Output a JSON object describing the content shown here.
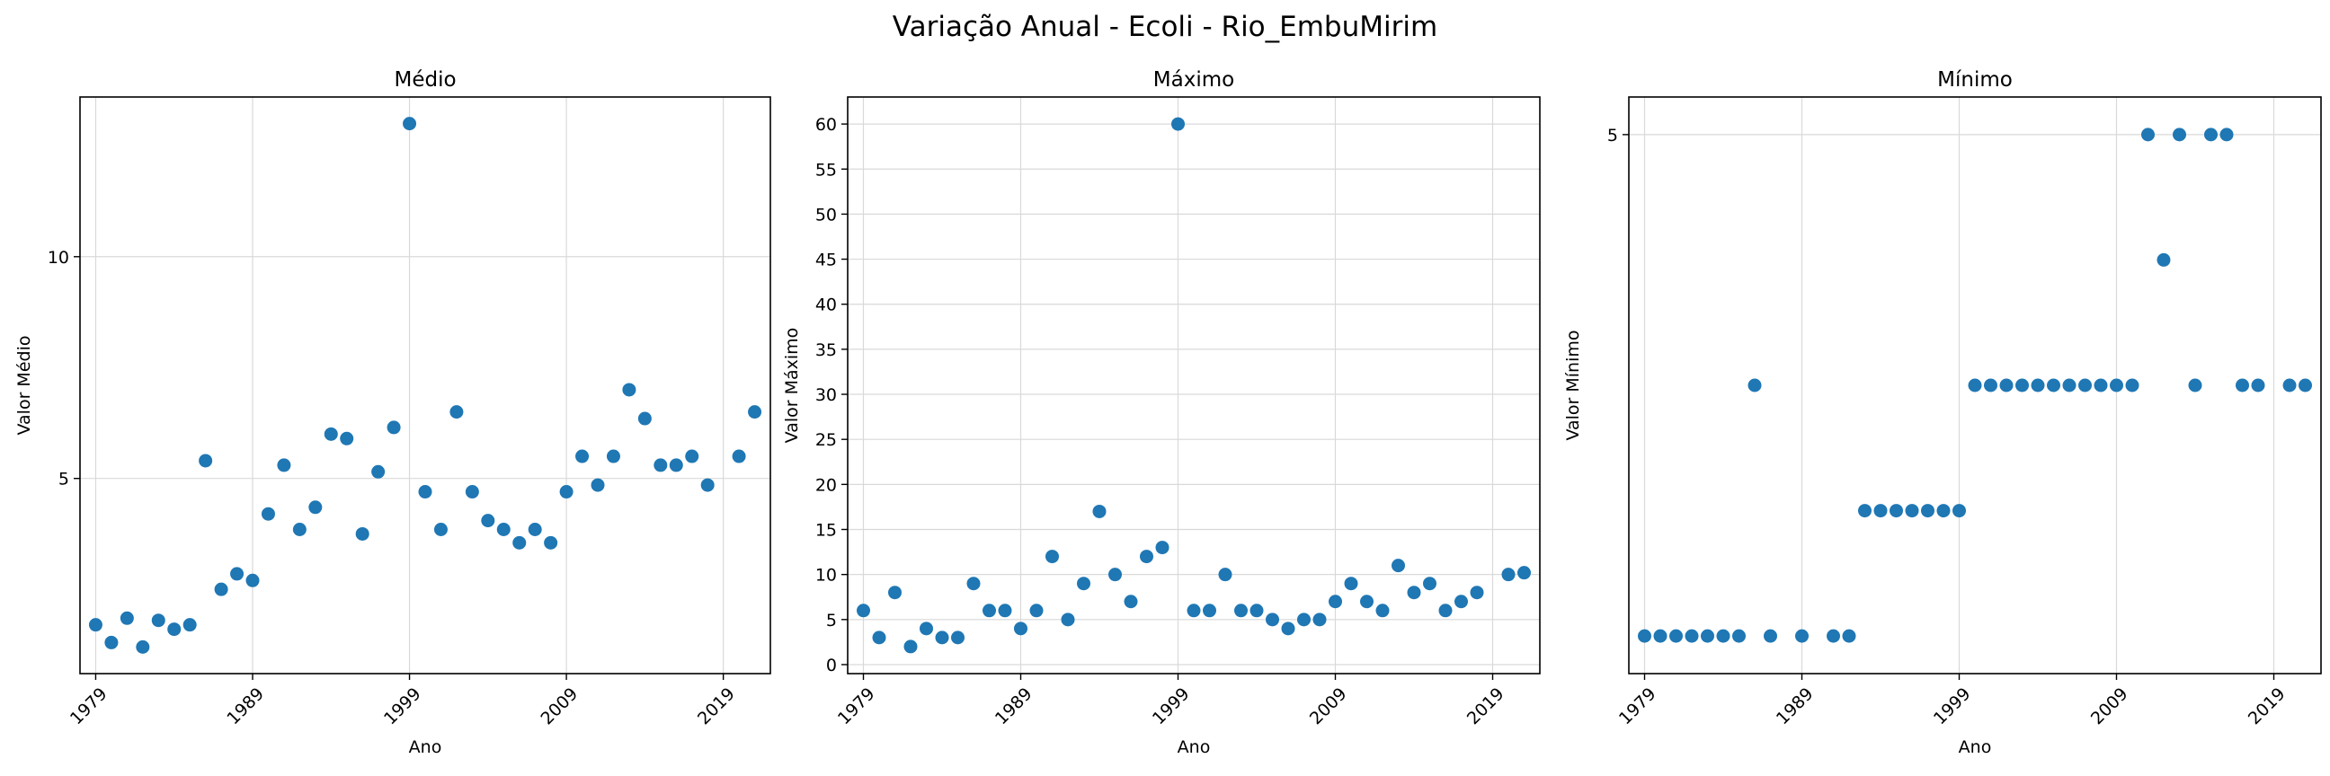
{
  "figure": {
    "title": "Variação Anual - Ecoli - Rio_EmbuMirim"
  },
  "colors": {
    "marker": "#1f77b4",
    "grid": "#d9d9d9",
    "axes": "#000000"
  },
  "chart_data": [
    {
      "type": "scatter",
      "title": "Médio",
      "xlabel": "Ano",
      "ylabel": "Valor Médio",
      "xlim": [
        1978,
        2022
      ],
      "ylim": [
        0.6,
        13.6
      ],
      "x_ticks": [
        1979,
        1989,
        1999,
        2009,
        2019
      ],
      "y_ticks": [
        5,
        10
      ],
      "grid": true,
      "x": [
        1979,
        1980,
        1981,
        1982,
        1983,
        1984,
        1985,
        1986,
        1987,
        1988,
        1989,
        1990,
        1991,
        1992,
        1993,
        1994,
        1995,
        1996,
        1997,
        1998,
        1999,
        2000,
        2001,
        2002,
        2003,
        2004,
        2005,
        2006,
        2007,
        2008,
        2009,
        2010,
        2011,
        2012,
        2013,
        2014,
        2015,
        2016,
        2017,
        2018,
        2020,
        2021
      ],
      "y": [
        1.7,
        1.3,
        1.85,
        1.2,
        1.8,
        1.6,
        1.7,
        5.4,
        2.5,
        2.85,
        2.7,
        4.2,
        5.3,
        3.85,
        4.35,
        6.0,
        5.9,
        3.75,
        5.15,
        6.15,
        13.0,
        4.7,
        3.85,
        6.5,
        4.7,
        4.05,
        3.85,
        3.55,
        3.85,
        3.55,
        4.7,
        5.5,
        4.85,
        5.5,
        7.0,
        6.35,
        5.3,
        5.3,
        5.5,
        4.85,
        5.5,
        6.5
      ]
    },
    {
      "type": "scatter",
      "title": "Máximo",
      "xlabel": "Ano",
      "ylabel": "Valor Máximo",
      "xlim": [
        1978,
        2022
      ],
      "ylim": [
        -1,
        63
      ],
      "x_ticks": [
        1979,
        1989,
        1999,
        2009,
        2019
      ],
      "y_ticks": [
        0,
        5,
        10,
        15,
        20,
        25,
        30,
        35,
        40,
        45,
        50,
        55,
        60
      ],
      "grid": true,
      "x": [
        1979,
        1980,
        1981,
        1982,
        1983,
        1984,
        1985,
        1986,
        1987,
        1988,
        1989,
        1990,
        1991,
        1992,
        1993,
        1994,
        1995,
        1996,
        1997,
        1998,
        1999,
        2000,
        2001,
        2002,
        2003,
        2004,
        2005,
        2006,
        2007,
        2008,
        2009,
        2010,
        2011,
        2012,
        2013,
        2014,
        2015,
        2016,
        2017,
        2018,
        2020,
        2021
      ],
      "y": [
        6,
        3,
        8,
        2,
        4,
        3,
        3,
        9,
        6,
        6,
        4,
        6,
        12,
        5,
        9,
        17,
        10,
        7,
        12,
        13,
        60,
        6,
        6,
        10,
        6,
        6,
        5,
        4,
        5,
        5,
        7,
        9,
        7,
        6,
        11,
        8,
        9,
        6,
        7,
        8,
        10,
        10.2
      ]
    },
    {
      "type": "scatter",
      "title": "Mínimo",
      "xlabel": "Ano",
      "ylabel": "Valor Mínimo",
      "xlim": [
        1978,
        2022
      ],
      "ylim": [
        0.7,
        5.3
      ],
      "x_ticks": [
        1979,
        1989,
        1999,
        2009,
        2019
      ],
      "y_ticks": [
        5
      ],
      "grid": true,
      "x": [
        1979,
        1980,
        1981,
        1982,
        1983,
        1984,
        1985,
        1986,
        1987,
        1989,
        1991,
        1992,
        1993,
        1994,
        1995,
        1996,
        1997,
        1998,
        1999,
        2000,
        2001,
        2002,
        2003,
        2004,
        2005,
        2006,
        2007,
        2008,
        2009,
        2010,
        2011,
        2012,
        2013,
        2014,
        2015,
        2016,
        2017,
        2018,
        2020,
        2021
      ],
      "y": [
        1,
        1,
        1,
        1,
        1,
        1,
        1,
        3,
        1,
        1,
        1,
        1,
        2,
        2,
        2,
        2,
        2,
        2,
        2,
        3,
        3,
        3,
        3,
        3,
        3,
        3,
        3,
        3,
        3,
        3,
        5,
        4,
        5,
        3,
        5,
        5,
        3,
        3,
        3,
        3
      ]
    }
  ]
}
